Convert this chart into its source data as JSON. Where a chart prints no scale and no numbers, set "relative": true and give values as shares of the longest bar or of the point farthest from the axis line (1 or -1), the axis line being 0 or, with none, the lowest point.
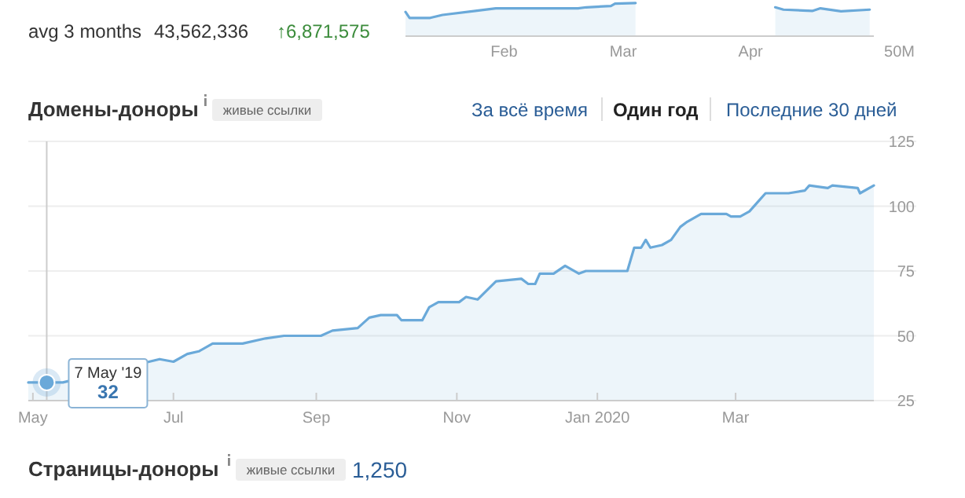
{
  "chart_data": [
    {
      "type": "other",
      "annotations": [
        "avg 3 months",
        "43,562,336",
        "↑6,871,575"
      ]
    },
    {
      "type": "area",
      "relative": true,
      "xlim": [
        "2020-01-08",
        "2020-05-01"
      ],
      "xticks": [
        {
          "value": "2020-02-01",
          "label": "Feb"
        },
        {
          "value": "2020-03-01",
          "label": "Mar"
        },
        {
          "value": "2020-04-01",
          "label": "Apr"
        }
      ],
      "annotations": [
        "50M"
      ],
      "series": [
        {
          "color": "#6aa9d9",
          "x": [
            "2020-01-08",
            "2020-01-09",
            "2020-01-14",
            "2020-01-17",
            "2020-01-25",
            "2020-01-30",
            "2020-02-19",
            "2020-02-21",
            "2020-02-27",
            "2020-02-28",
            "2020-03-04"
          ],
          "values": [
            0.73,
            0.55,
            0.55,
            0.64,
            0.76,
            0.84,
            0.84,
            0.87,
            0.91,
            0.98,
            1
          ]
        },
        {
          "color": "#6aa9d9",
          "x": [
            "2020-04-07",
            "2020-04-09",
            "2020-04-16",
            "2020-04-18",
            "2020-04-23",
            "2020-04-30"
          ],
          "values": [
            0.87,
            0.8,
            0.76,
            0.84,
            0.75,
            0.8
          ]
        }
      ]
    },
    {
      "type": "area",
      "title": "Домены-доноры",
      "subtitle": "живые ссылки",
      "xlim": [
        "2019-04-29",
        "2020-04-30"
      ],
      "ylim": [
        25,
        125
      ],
      "yticks": [
        25,
        50,
        75,
        100,
        125
      ],
      "grid": "y",
      "xticks": [
        {
          "value": "2019-05-01",
          "label": "May"
        },
        {
          "value": "2019-07-01",
          "label": "Jul"
        },
        {
          "value": "2019-09-01",
          "label": "Sep"
        },
        {
          "value": "2019-11-01",
          "label": "Nov"
        },
        {
          "value": "2020-01-01",
          "label": "Jan 2020"
        },
        {
          "value": "2020-03-01",
          "label": "Mar"
        }
      ],
      "ref_lines": [
        {
          "axis": "x",
          "value": "2019-05-07",
          "color": "#cccccc"
        }
      ],
      "annotations": [
        "За всё время",
        "Один год",
        "Последние 30 дней",
        {
          "text": "7 May '19",
          "x": "2019-05-07",
          "y": 32
        },
        {
          "text": "32",
          "x": "2019-05-07",
          "y": 32
        }
      ],
      "series": [
        {
          "color": "#6aa9d9",
          "x": [
            "2019-04-29",
            "2019-05-07",
            "2019-05-14",
            "2019-06-25",
            "2019-07-01",
            "2019-07-07",
            "2019-07-12",
            "2019-07-18",
            "2019-07-31",
            "2019-08-10",
            "2019-08-18",
            "2019-09-03",
            "2019-09-08",
            "2019-09-19",
            "2019-09-24",
            "2019-09-29",
            "2019-10-06",
            "2019-10-08",
            "2019-10-17",
            "2019-10-20",
            "2019-10-24",
            "2019-11-02",
            "2019-11-05",
            "2019-11-10",
            "2019-11-18",
            "2019-11-29",
            "2019-12-02",
            "2019-12-05",
            "2019-12-07",
            "2019-12-13",
            "2019-12-18",
            "2019-12-24",
            "2019-12-27",
            "2020-01-14",
            "2020-01-17",
            "2020-01-20",
            "2020-01-22",
            "2020-01-24",
            "2020-01-29",
            "2020-02-02",
            "2020-02-06",
            "2020-02-09",
            "2020-02-15",
            "2020-02-26",
            "2020-02-28",
            "2020-03-03",
            "2020-03-07",
            "2020-03-11",
            "2020-03-14",
            "2020-03-24",
            "2020-03-31",
            "2020-04-02",
            "2020-04-10",
            "2020-04-12",
            "2020-04-23",
            "2020-04-24",
            "2020-04-30"
          ],
          "values": [
            32,
            32,
            32,
            41,
            40,
            43,
            44,
            47,
            47,
            49,
            50,
            50,
            52,
            53,
            57,
            58,
            58,
            56,
            56,
            61,
            63,
            63,
            65,
            64,
            71,
            72,
            70,
            70,
            74,
            74,
            77,
            74,
            75,
            75,
            84,
            84,
            87,
            84,
            85,
            87,
            92,
            94,
            97,
            97,
            96,
            96,
            98,
            102,
            105,
            105,
            106,
            108,
            107,
            108,
            107,
            105,
            108
          ]
        }
      ]
    },
    {
      "type": "other",
      "title": "Страницы-доноры",
      "subtitle": "живые ссылки",
      "annotations": [
        "1,250"
      ]
    }
  ]
}
